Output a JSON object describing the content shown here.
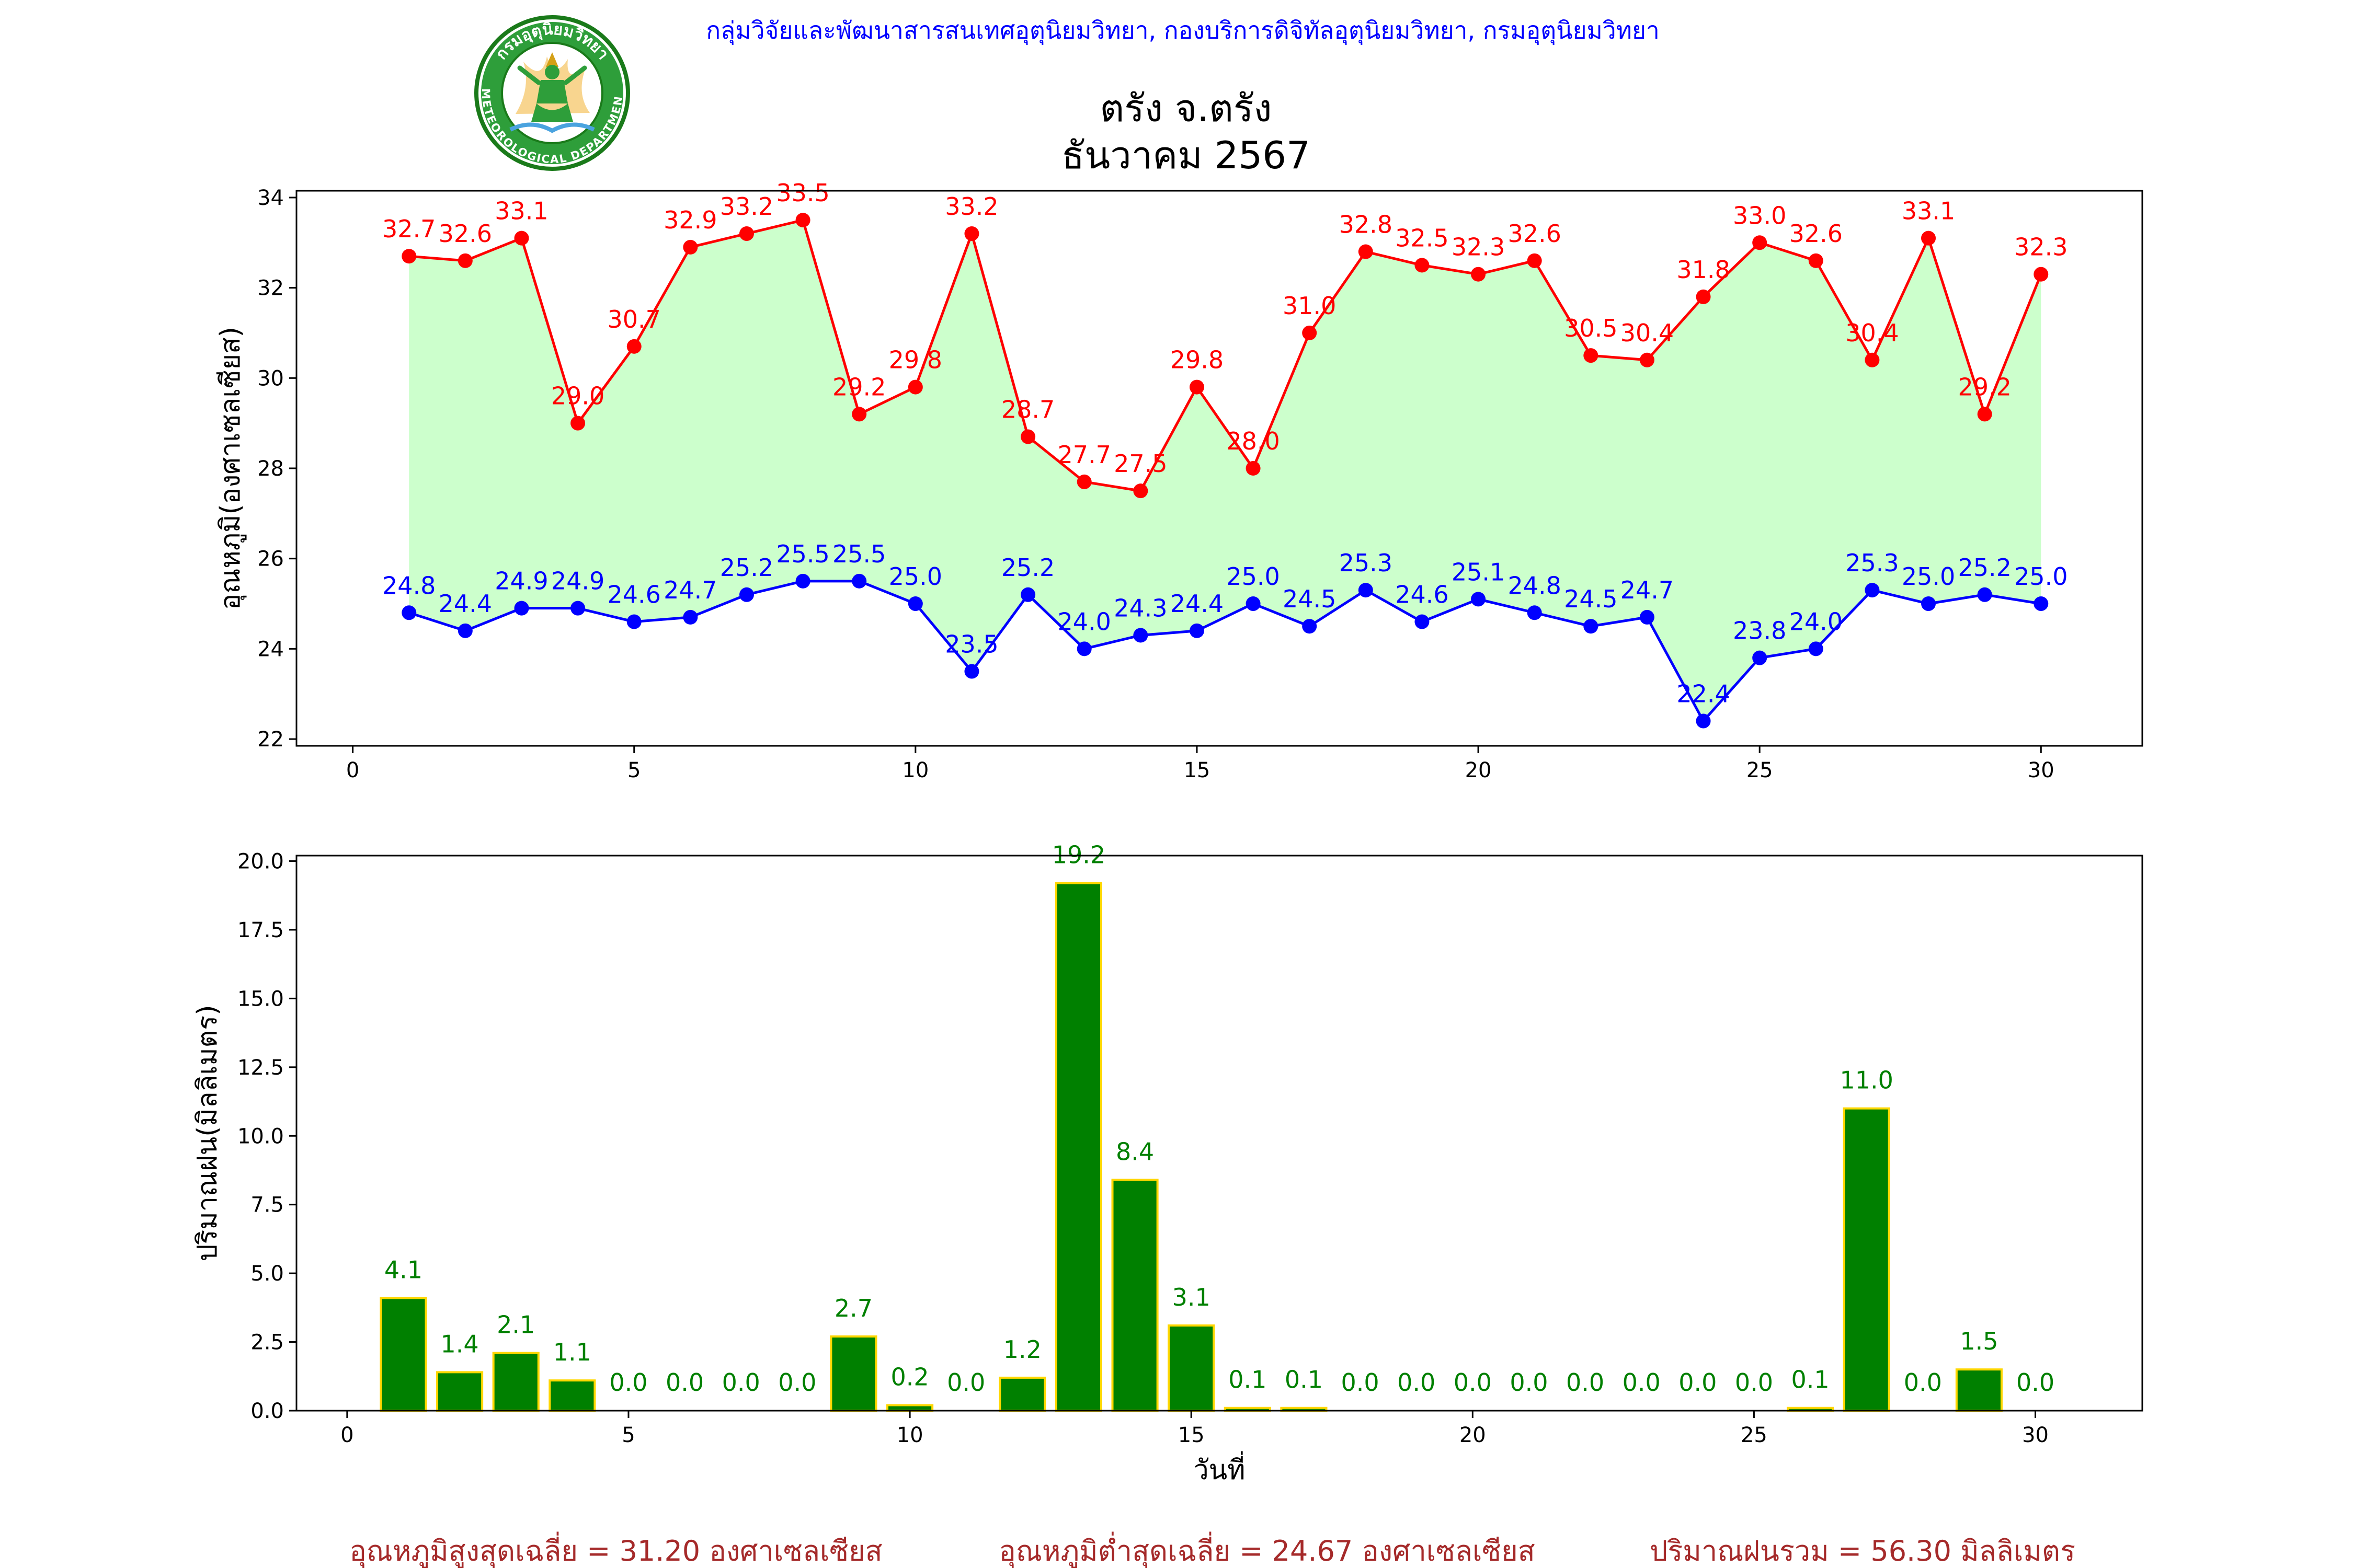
{
  "header": {
    "agency": "กลุ่มวิจัยและพัฒนาสารสนเทศอุตุนิยมวิทยา, กองบริการดิจิทัลอุตุนิยมวิทยา, กรมอุตุนิยมวิทยา",
    "logo_text_top": "กรมอุตุนิยมวิทยา",
    "logo_text_bottom": "METEOROLOGICAL DEPARTMENT",
    "title_line1": "ตรัง จ.ตรัง",
    "title_line2": "ธันวาคม 2567"
  },
  "colors": {
    "header_text": "#0000ff",
    "max_line": "#ff0000",
    "min_line": "#0000ff",
    "band_fill": "#ccffcc",
    "rain_bar": "#008000",
    "rain_edge": "#ffd700",
    "rain_label": "#008000",
    "summary_text": "#a52a2a"
  },
  "chart_data": [
    {
      "type": "line",
      "ylabel": "อุณหภูมิ(องศาเซลเซียส)",
      "xlim": [
        -1,
        31.8
      ],
      "ylim": [
        21.85,
        34.15
      ],
      "xticks": [
        0,
        5,
        10,
        15,
        20,
        25,
        30
      ],
      "yticks": [
        22,
        24,
        26,
        28,
        30,
        32,
        34
      ],
      "x": [
        1,
        2,
        3,
        4,
        5,
        6,
        7,
        8,
        9,
        10,
        11,
        12,
        13,
        14,
        15,
        16,
        17,
        18,
        19,
        20,
        21,
        22,
        23,
        24,
        25,
        26,
        27,
        28,
        29,
        30
      ],
      "series": [
        {
          "role": "max",
          "values": [
            32.7,
            32.6,
            33.1,
            29.0,
            30.7,
            32.9,
            33.2,
            33.5,
            29.2,
            29.8,
            33.2,
            28.7,
            27.7,
            27.5,
            29.8,
            28.0,
            31.0,
            32.8,
            32.5,
            32.3,
            32.6,
            30.5,
            30.4,
            31.8,
            33.0,
            32.6,
            30.4,
            33.1,
            29.2,
            32.3
          ],
          "labels": [
            "32.7",
            "32.6",
            "33.1",
            "29.0",
            "30.7",
            "32.9",
            "33.2",
            "33.5",
            "29.2",
            "29.8",
            "33.2",
            "28.7",
            "27.7",
            "27.5",
            "29.8",
            "28.0",
            "31.0",
            "32.8",
            "32.5",
            "32.3",
            "32.6",
            "30.5",
            "30.4",
            "31.8",
            "33.0",
            "32.6",
            "30.4",
            "33.1",
            "29.2",
            "32.3"
          ]
        },
        {
          "role": "min",
          "values": [
            24.8,
            24.4,
            24.9,
            24.9,
            24.6,
            24.7,
            25.2,
            25.5,
            25.5,
            25.0,
            23.5,
            25.2,
            24.0,
            24.3,
            24.4,
            25.0,
            24.5,
            25.3,
            24.6,
            25.1,
            24.8,
            24.5,
            24.7,
            22.4,
            23.8,
            24.0,
            25.3,
            25.0,
            25.2,
            25.0
          ],
          "labels": [
            "24.8",
            "24.4",
            "24.9",
            "24.9",
            "24.6",
            "24.7",
            "25.2",
            "25.5",
            "25.5",
            "25.0",
            "23.5",
            "25.2",
            "24.0",
            "24.3",
            "24.4",
            "25.0",
            "24.5",
            "25.3",
            "24.6",
            "25.1",
            "24.8",
            "24.5",
            "24.7",
            "22.4",
            "23.8",
            "24.0",
            "25.3",
            "25.0",
            "25.2",
            "25.0"
          ]
        }
      ]
    },
    {
      "type": "bar",
      "ylabel": "ปริมาณฝน(มิลลิเมตร)",
      "xlabel": "วันที่",
      "xlim": [
        -0.9,
        31.9
      ],
      "ylim": [
        0,
        20.2
      ],
      "xticks": [
        0,
        5,
        10,
        15,
        20,
        25,
        30
      ],
      "yticks": [
        0.0,
        2.5,
        5.0,
        7.5,
        10.0,
        12.5,
        15.0,
        17.5,
        20.0
      ],
      "ytick_labels": [
        "0.0",
        "2.5",
        "5.0",
        "7.5",
        "10.0",
        "12.5",
        "15.0",
        "17.5",
        "20.0"
      ],
      "x": [
        1,
        2,
        3,
        4,
        5,
        6,
        7,
        8,
        9,
        10,
        11,
        12,
        13,
        14,
        15,
        16,
        17,
        18,
        19,
        20,
        21,
        22,
        23,
        24,
        25,
        26,
        27,
        28,
        29,
        30
      ],
      "values": [
        4.1,
        1.4,
        2.1,
        1.1,
        0.0,
        0.0,
        0.0,
        0.0,
        2.7,
        0.2,
        0.0,
        1.2,
        19.2,
        8.4,
        3.1,
        0.1,
        0.1,
        0.0,
        0.0,
        0.0,
        0.0,
        0.0,
        0.0,
        0.0,
        0.0,
        0.1,
        11.0,
        0.0,
        1.5,
        0.0
      ],
      "labels": [
        "4.1",
        "1.4",
        "2.1",
        "1.1",
        "0.0",
        "0.0",
        "0.0",
        "0.0",
        "2.7",
        "0.2",
        "0.0",
        "1.2",
        "19.2",
        "8.4",
        "3.1",
        "0.1",
        "0.1",
        "0.0",
        "0.0",
        "0.0",
        "0.0",
        "0.0",
        "0.0",
        "0.0",
        "0.0",
        "0.1",
        "11.0",
        "0.0",
        "1.5",
        "0.0"
      ]
    }
  ],
  "summary": {
    "avg_max": "อุณหภูมิสูงสุดเฉลี่ย = 31.20 องศาเซลเซียส",
    "avg_min": "อุณหภูมิต่ำสุดเฉลี่ย = 24.67 องศาเซลเซียส",
    "total_rain": "ปริมาณฝนรวม = 56.30 มิลลิเมตร"
  }
}
